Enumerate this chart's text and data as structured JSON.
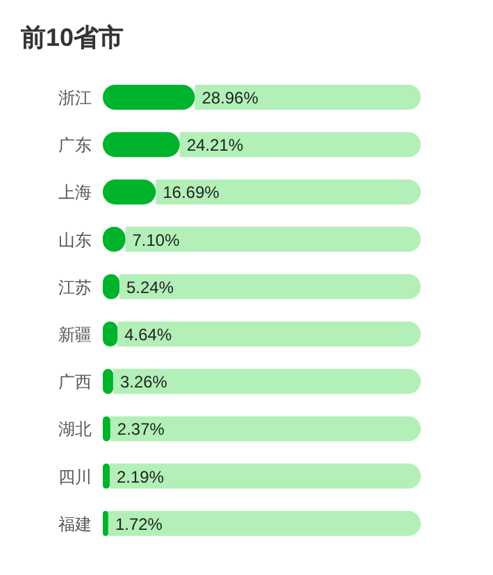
{
  "chart_data": {
    "type": "bar",
    "orientation": "horizontal",
    "stacked": true,
    "title": "前10省市",
    "categories": [
      "浙江",
      "广东",
      "上海",
      "山东",
      "江苏",
      "新疆",
      "广西",
      "湖北",
      "四川",
      "福建"
    ],
    "series": [
      {
        "color": "#00b32c",
        "values": [
          28.96,
          24.21,
          16.69,
          7.1,
          5.24,
          4.64,
          3.26,
          2.37,
          2.19,
          1.72
        ],
        "value_labels": [
          "28.96%",
          "24.21%",
          "16.69%",
          "7.10%",
          "5.24%",
          "4.64%",
          "3.26%",
          "2.37%",
          "2.19%",
          "1.72%"
        ]
      },
      {
        "color": "#b2f0b8",
        "values": [
          71.04,
          75.79,
          83.31,
          92.9,
          94.76,
          95.36,
          96.74,
          97.63,
          97.81,
          98.28
        ]
      }
    ],
    "xlim": [
      0,
      100
    ]
  }
}
